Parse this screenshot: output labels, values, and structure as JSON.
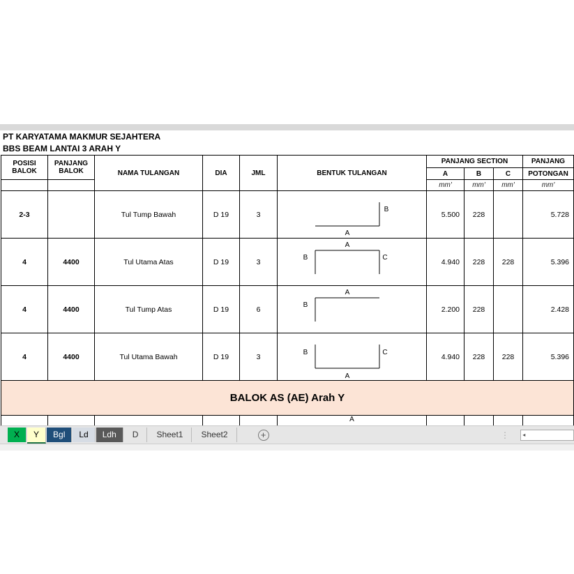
{
  "company": "PT KARYATAMA MAKMUR SEJAHTERA",
  "subtitle": "BBS BEAM LANTAI 3 ARAH Y",
  "headers": {
    "posisi": "POSISI",
    "balok1": "BALOK",
    "panjang": "PANJANG",
    "balok2": "BALOK",
    "nama": "NAMA TULANGAN",
    "dia": "DIA",
    "jml": "JML",
    "bentuk": "BENTUK TULANGAN",
    "section": "PANJANG SECTION",
    "a": "A",
    "b": "B",
    "c": "C",
    "panjang2": "PANJANG",
    "potongan": "POTONGAN",
    "unit": "mm'"
  },
  "rows": [
    {
      "posisi": "2-3",
      "panjang": "",
      "nama": "Tul Tump Bawah",
      "dia": "D 19",
      "jml": "3",
      "shape": "L-up-right",
      "a": "5.500",
      "b": "228",
      "c": "",
      "total": "5.728"
    },
    {
      "posisi": "4",
      "panjang": "4400",
      "nama": "Tul Utama Atas",
      "dia": "D 19",
      "jml": "3",
      "shape": "U-down",
      "a": "4.940",
      "b": "228",
      "c": "228",
      "total": "5.396"
    },
    {
      "posisi": "4",
      "panjang": "4400",
      "nama": "Tul Tump Atas",
      "dia": "D 19",
      "jml": "6",
      "shape": "L-down-left",
      "a": "2.200",
      "b": "228",
      "c": "",
      "total": "2.428"
    },
    {
      "posisi": "4",
      "panjang": "4400",
      "nama": "Tul Utama Bawah",
      "dia": "D 19",
      "jml": "3",
      "shape": "U-up",
      "a": "4.940",
      "b": "228",
      "c": "228",
      "total": "5.396"
    }
  ],
  "labels": {
    "A": "A",
    "B": "B",
    "C": "C"
  },
  "banner": "BALOK AS (AE) Arah Y",
  "partial_label": "A",
  "tabs": [
    {
      "label": "X",
      "bg": "#00b050",
      "fg": "#000"
    },
    {
      "label": "Y",
      "bg": "#ffffcc",
      "fg": "#000"
    },
    {
      "label": "Bgl",
      "bg": "#1f4e79",
      "fg": "#fff"
    },
    {
      "label": "Ld",
      "bg": "#d6dce4",
      "fg": "#000"
    },
    {
      "label": "Ldh",
      "bg": "#595959",
      "fg": "#fff"
    },
    {
      "label": "D",
      "bg": "",
      "fg": "#333"
    },
    {
      "label": "Sheet1",
      "bg": "",
      "fg": "#333"
    },
    {
      "label": "Sheet2",
      "bg": "",
      "fg": "#333"
    }
  ],
  "active_tab": "Y"
}
